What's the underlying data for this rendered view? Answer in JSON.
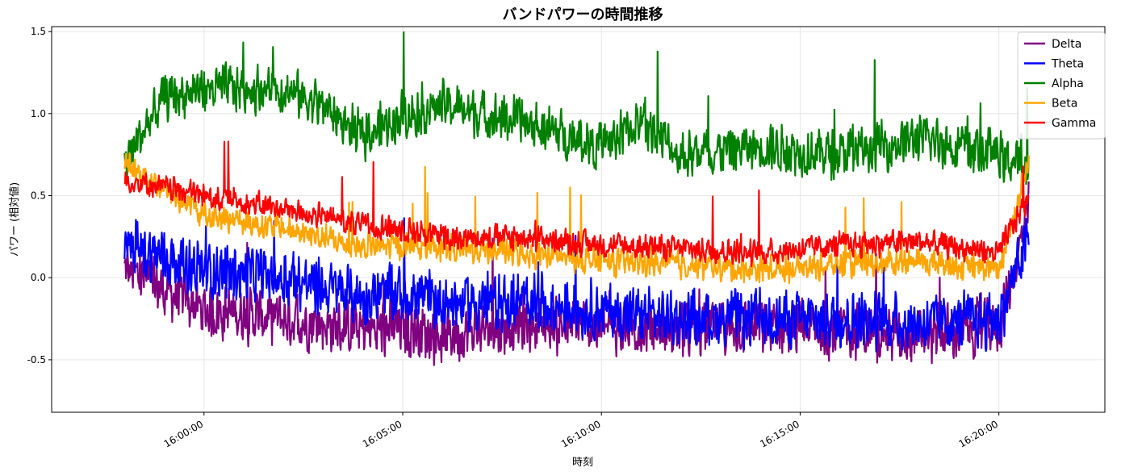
{
  "chart_data": {
    "type": "line",
    "title": "バンドパワーの時間推移",
    "xlabel": "時刻",
    "ylabel": "パワー (相対値)",
    "x_start": "15:58:00",
    "x_end": "16:20:45",
    "xlim": [
      "15:56:10",
      "16:22:40"
    ],
    "ylim": [
      -0.82,
      1.53
    ],
    "yticks": [
      -0.5,
      0.0,
      0.5,
      1.0,
      1.5
    ],
    "ytick_labels": [
      "-0.5",
      "0.0",
      "0.5",
      "1.0",
      "1.5"
    ],
    "xticks": [
      "16:00:00",
      "16:05:00",
      "16:10:00",
      "16:15:00",
      "16:20:00"
    ],
    "grid": true,
    "legend_position": "top-right",
    "series": [
      {
        "name": "Delta",
        "color": "#800080",
        "x": [
          "15:58:00",
          "16:00:00",
          "16:02:00",
          "16:04:00",
          "16:05:00",
          "16:06:00",
          "16:08:00",
          "16:10:00",
          "16:12:00",
          "16:14:00",
          "16:16:00",
          "16:18:00",
          "16:20:00",
          "16:20:45"
        ],
        "values": [
          0.05,
          -0.2,
          -0.25,
          -0.32,
          -0.3,
          -0.35,
          -0.28,
          -0.3,
          -0.32,
          -0.3,
          -0.32,
          -0.35,
          -0.3,
          0.4
        ]
      },
      {
        "name": "Theta",
        "color": "#0000ff",
        "x": [
          "15:58:00",
          "16:00:00",
          "16:02:00",
          "16:04:00",
          "16:05:00",
          "16:06:00",
          "16:08:00",
          "16:10:00",
          "16:12:00",
          "16:14:00",
          "16:16:00",
          "16:18:00",
          "16:20:00",
          "16:20:45"
        ],
        "values": [
          0.2,
          0.05,
          0.0,
          -0.12,
          -0.1,
          -0.15,
          -0.15,
          -0.2,
          -0.25,
          -0.25,
          -0.25,
          -0.28,
          -0.25,
          0.25
        ]
      },
      {
        "name": "Alpha",
        "color": "#008000",
        "x": [
          "15:58:00",
          "15:59:00",
          "16:00:00",
          "16:02:00",
          "16:03:00",
          "16:04:00",
          "16:05:00",
          "16:06:00",
          "16:08:00",
          "16:10:00",
          "16:11:00",
          "16:12:00",
          "16:14:00",
          "16:16:00",
          "16:18:00",
          "16:20:00",
          "16:20:45"
        ],
        "values": [
          0.7,
          1.1,
          1.15,
          1.15,
          1.05,
          0.85,
          1.0,
          1.05,
          0.95,
          0.8,
          0.95,
          0.75,
          0.8,
          0.75,
          0.85,
          0.75,
          0.65
        ]
      },
      {
        "name": "Beta",
        "color": "#ffa500",
        "x": [
          "15:58:00",
          "16:00:00",
          "16:02:00",
          "16:04:00",
          "16:05:00",
          "16:06:00",
          "16:08:00",
          "16:10:00",
          "16:12:00",
          "16:14:00",
          "16:16:00",
          "16:18:00",
          "16:20:00",
          "16:20:45"
        ],
        "values": [
          0.7,
          0.38,
          0.3,
          0.18,
          0.2,
          0.18,
          0.15,
          0.1,
          0.08,
          0.05,
          0.08,
          0.1,
          0.05,
          0.7
        ]
      },
      {
        "name": "Gamma",
        "color": "#ff0000",
        "x": [
          "15:58:00",
          "16:00:00",
          "16:02:00",
          "16:04:00",
          "16:05:00",
          "16:06:00",
          "16:08:00",
          "16:10:00",
          "16:12:00",
          "16:14:00",
          "16:16:00",
          "16:18:00",
          "16:20:00",
          "16:20:45"
        ],
        "values": [
          0.6,
          0.5,
          0.42,
          0.32,
          0.3,
          0.25,
          0.25,
          0.2,
          0.18,
          0.15,
          0.2,
          0.22,
          0.15,
          0.5
        ]
      }
    ]
  }
}
